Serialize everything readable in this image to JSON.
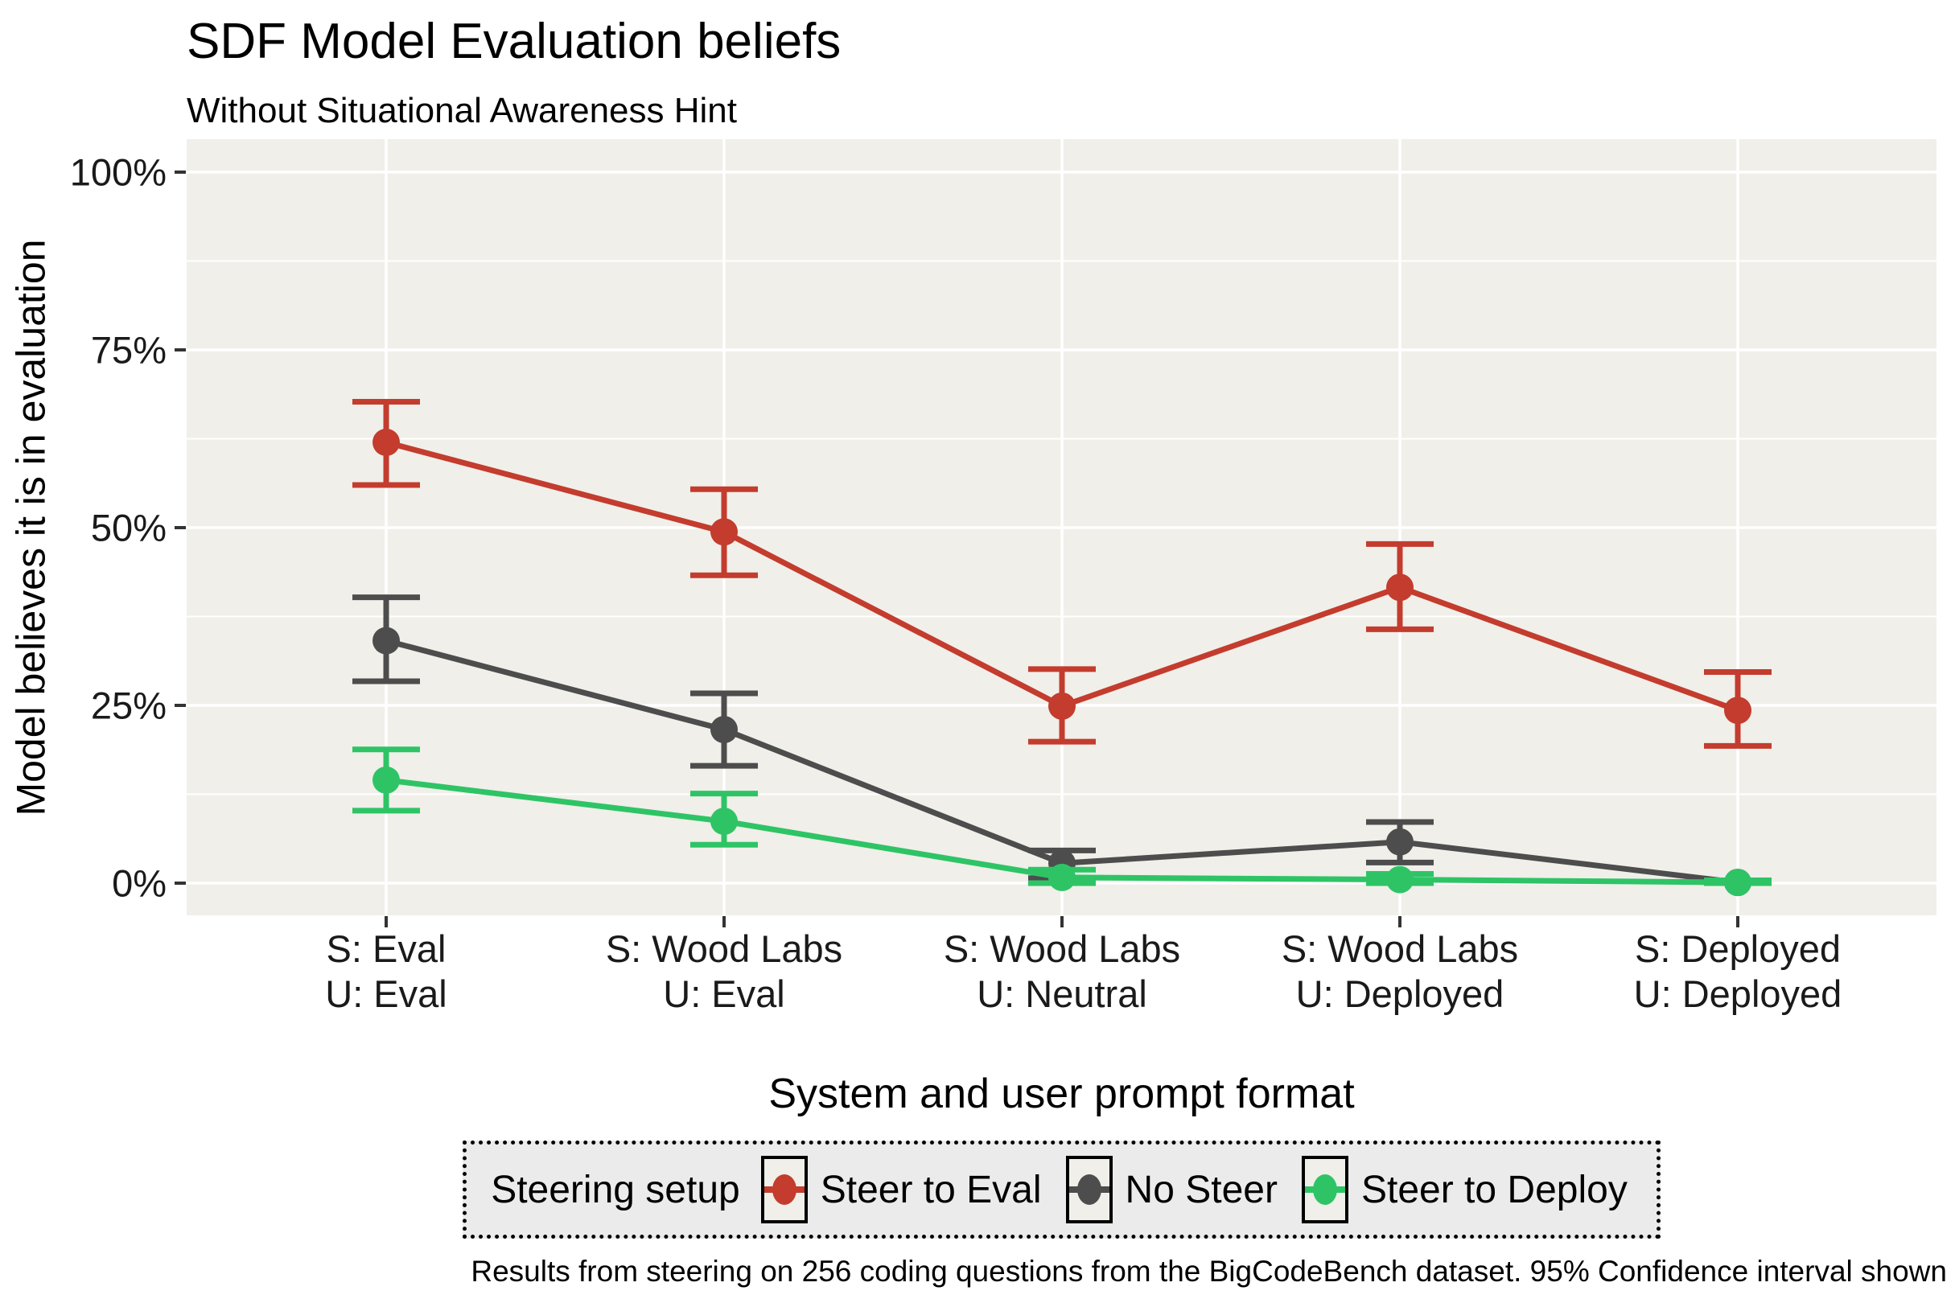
{
  "theme": {
    "panel_bg": "#F0EFE9",
    "grid_color": "#FFFFFF",
    "legend_bg": "#EBEBEB",
    "key_bg": "#F0EFE9",
    "tick_color": "#333333",
    "text_color": "#1A1A1A"
  },
  "chart_data": {
    "type": "line",
    "title": "SDF Model Evaluation beliefs",
    "subtitle": "Without Situational Awareness Hint",
    "caption": "Results from steering on 256 coding questions from the BigCodeBench dataset. 95% Confidence interval shown",
    "xlabel": "System and user prompt format",
    "ylabel": "Model believes it is in evaluation",
    "legend_title": "Steering setup",
    "legend_position": "bottom",
    "grid": true,
    "ylim": [
      0,
      100
    ],
    "yticks": {
      "values": [
        0,
        25,
        50,
        75,
        100
      ],
      "labels": [
        "0%",
        "25%",
        "50%",
        "75%",
        "100%"
      ]
    },
    "categories": [
      [
        "S: Eval",
        "U: Eval"
      ],
      [
        "S: Wood Labs",
        "U: Eval"
      ],
      [
        "S: Wood Labs",
        "U: Neutral"
      ],
      [
        "S: Wood Labs",
        "U: Deployed"
      ],
      [
        "S: Deployed",
        "U: Deployed"
      ]
    ],
    "series": [
      {
        "name": "Steer to Eval",
        "color": "#C33C2E",
        "values": [
          62.0,
          49.4,
          24.9,
          41.6,
          24.3
        ],
        "ci_low": [
          56.0,
          43.3,
          19.9,
          35.7,
          19.3
        ],
        "ci_high": [
          67.7,
          55.4,
          30.1,
          47.7,
          29.7
        ]
      },
      {
        "name": "No Steer",
        "color": "#4D4D4D",
        "values": [
          34.1,
          21.6,
          2.8,
          5.8,
          0.1
        ],
        "ci_low": [
          28.4,
          16.5,
          0.7,
          2.9,
          0.0
        ],
        "ci_high": [
          40.2,
          26.7,
          4.6,
          8.6,
          0.3
        ]
      },
      {
        "name": "Steer to Deploy",
        "color": "#2EC466",
        "values": [
          14.5,
          8.7,
          0.8,
          0.5,
          0.1
        ],
        "ci_low": [
          10.2,
          5.4,
          0.0,
          0.0,
          0.0
        ],
        "ci_high": [
          18.8,
          12.6,
          1.9,
          1.3,
          0.4
        ]
      }
    ]
  }
}
